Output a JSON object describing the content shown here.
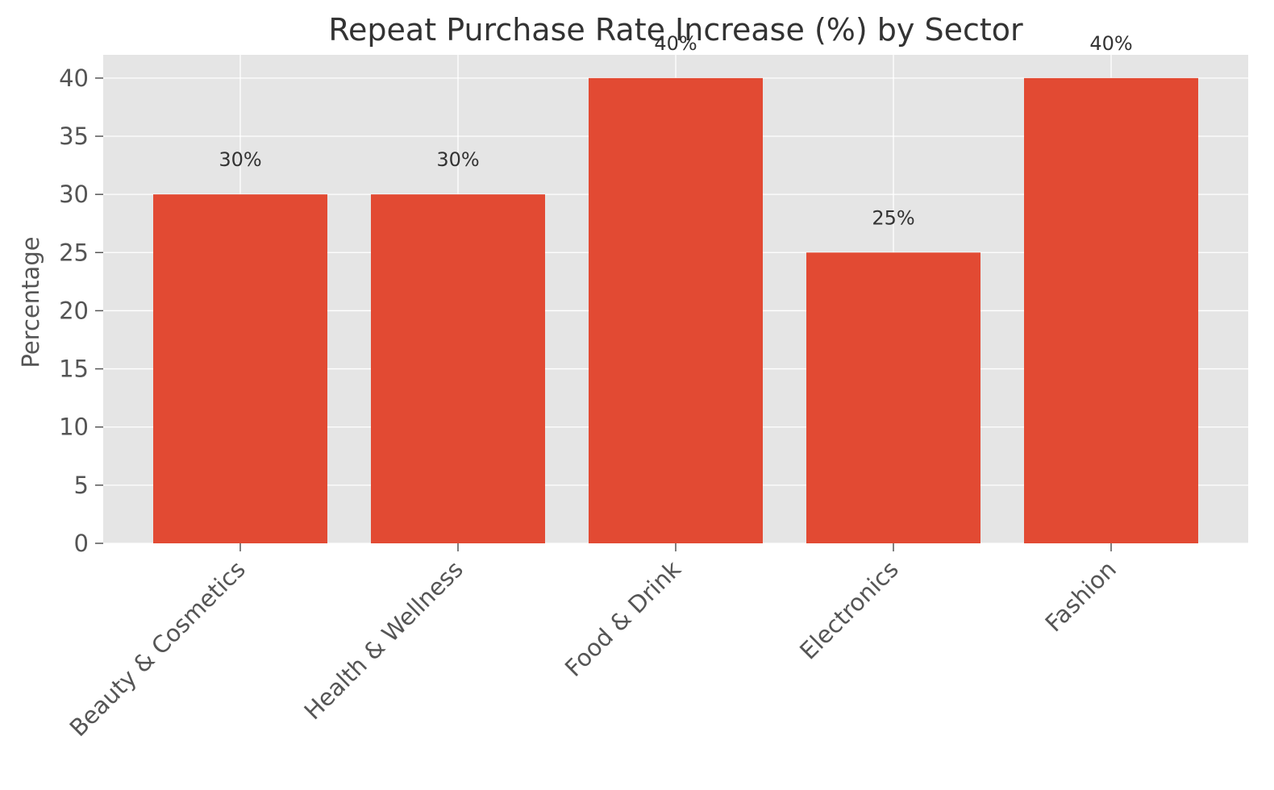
{
  "chart_data": {
    "type": "bar",
    "title": "Repeat Purchase Rate Increase (%) by Sector",
    "xlabel": "",
    "ylabel": "Percentage",
    "categories": [
      "Beauty & Cosmetics",
      "Health & Wellness",
      "Food & Drink",
      "Electronics",
      "Fashion"
    ],
    "values": [
      30,
      30,
      40,
      25,
      40
    ],
    "value_labels": [
      "30%",
      "30%",
      "40%",
      "25%",
      "40%"
    ],
    "ylim": [
      0,
      42
    ],
    "yticks": [
      0,
      5,
      10,
      15,
      20,
      25,
      30,
      35,
      40
    ],
    "grid": true,
    "legend": "none",
    "colors": {
      "bar": "#E24A33",
      "plot_background": "#E5E5E5",
      "grid": "#FFFFFF"
    }
  }
}
